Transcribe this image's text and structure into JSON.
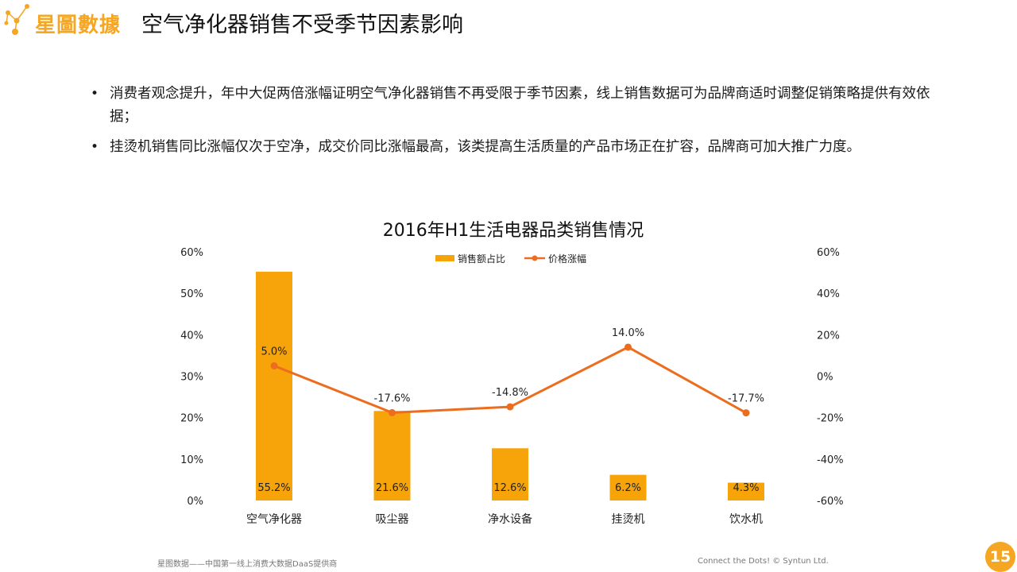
{
  "header": {
    "logo_text": "星圖數據",
    "title": "空气净化器销售不受季节因素影响"
  },
  "bullets": [
    "消费者观念提升，年中大促两倍涨幅证明空气净化器销售不再受限于季节因素，线上销售数据可为品牌商适时调整促销策略提供有效依据；",
    "挂烫机销售同比涨幅仅次于空净，成交价同比涨幅最高，该类提高生活质量的产品市场正在扩容，品牌商可加大推广力度。"
  ],
  "chart_data": {
    "type": "bar",
    "title": "2016年H1生活电器品类销售情况",
    "categories": [
      "空气净化器",
      "吸尘器",
      "净水设备",
      "挂烫机",
      "饮水机"
    ],
    "series": [
      {
        "name": "销售额占比",
        "type": "bar",
        "axis": "left",
        "values": [
          55.2,
          21.6,
          12.6,
          6.2,
          4.3
        ],
        "labels": [
          "55.2%",
          "21.6%",
          "12.6%",
          "6.2%",
          "4.3%"
        ],
        "color": "#f7a30a"
      },
      {
        "name": "价格涨幅",
        "type": "line",
        "axis": "right",
        "values": [
          5.0,
          -17.6,
          -14.8,
          14.0,
          -17.7
        ],
        "labels": [
          "5.0%",
          "-17.6%",
          "-14.8%",
          "14.0%",
          "-17.7%"
        ],
        "color": "#ed6d1f"
      }
    ],
    "ylim_left": [
      0,
      60
    ],
    "ylim_right": [
      -60,
      60
    ],
    "y_ticks_left": [
      "0%",
      "10%",
      "20%",
      "30%",
      "40%",
      "50%",
      "60%"
    ],
    "y_ticks_right": [
      "-60%",
      "-40%",
      "-20%",
      "0%",
      "20%",
      "40%",
      "60%"
    ],
    "legend_position": "top",
    "grid": false
  },
  "footer": {
    "left": "星图数据——中国第一线上消费大数据DaaS提供商",
    "right": "Connect the Dots!  © Syntun Ltd.",
    "page_number": "15"
  }
}
